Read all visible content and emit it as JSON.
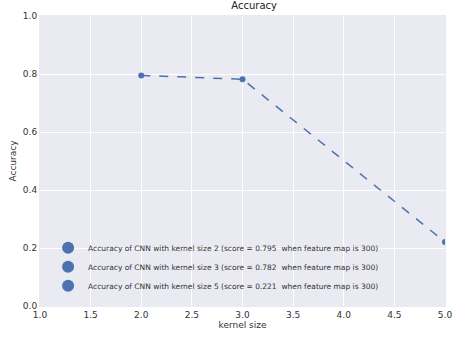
{
  "chart_data": {
    "type": "line",
    "title": "Accuracy",
    "x_label": "kernel size",
    "y_label": "Accuracy",
    "series": [
      {
        "name": "Accuracy of CNN with kernel size 2 (score = 0.795  when feature map is 300)",
        "color": "#4c72b0",
        "x": [
          2
        ],
        "values": [
          0.795
        ]
      },
      {
        "name": "Accuracy of CNN with kernel size 3 (score = 0.782  when feature map is 300)",
        "color": "#4c72b0",
        "x": [
          3
        ],
        "values": [
          0.782
        ]
      },
      {
        "name": "Accuracy of CNN with kernel size 5 (score = 0.221  when feature map is 300)",
        "color": "#4c72b0",
        "x": [
          5
        ],
        "values": [
          0.221
        ]
      }
    ],
    "xlim": [
      1.0,
      5.0
    ],
    "xticks": [
      {
        "value": 1.0,
        "label": "1.0"
      },
      1.5,
      {
        "value": 2.0,
        "label": "2.0"
      },
      2.5,
      {
        "value": 3.0,
        "label": "3.0"
      },
      3.5,
      {
        "value": 4.0,
        "label": "4.0"
      },
      4.5,
      {
        "value": 5.0,
        "label": "5.0"
      }
    ],
    "ylim": [
      0.0,
      1.0
    ],
    "yticks": [
      {
        "value": 0.0,
        "label": "0.0"
      },
      0.2,
      0.4,
      0.6,
      0.8,
      {
        "value": 1.0,
        "label": "1.0"
      }
    ],
    "grid": true,
    "legend": "lower left",
    "marker": "circle",
    "line_style": "dashed"
  }
}
